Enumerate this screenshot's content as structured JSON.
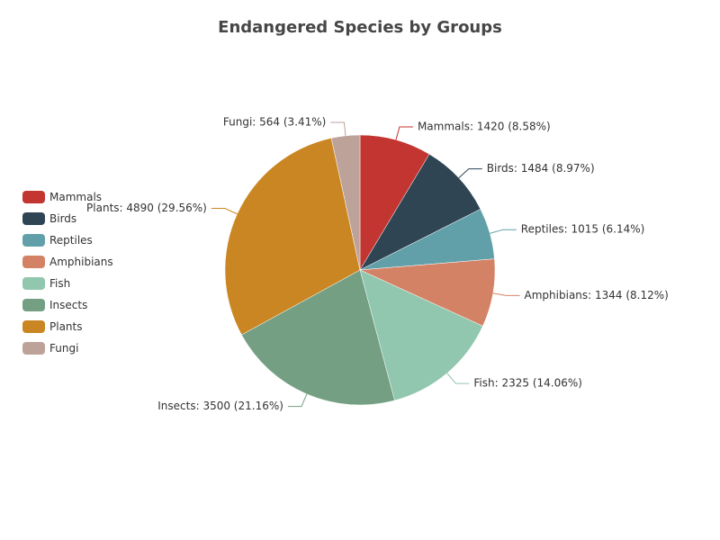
{
  "chart_data": {
    "type": "pie",
    "title": "Endangered Species by Groups",
    "legend_position": "left",
    "slices": [
      {
        "name": "Mammals",
        "value": 1420,
        "percent": "8.58%",
        "color": "#c23531",
        "label": "Mammals: 1420 (8.58%)"
      },
      {
        "name": "Birds",
        "value": 1484,
        "percent": "8.97%",
        "color": "#2f4554",
        "label": "Birds: 1484 (8.97%)"
      },
      {
        "name": "Reptiles",
        "value": 1015,
        "percent": "6.14%",
        "color": "#61a0a8",
        "label": "Reptiles: 1015 (6.14%)"
      },
      {
        "name": "Amphibians",
        "value": 1344,
        "percent": "8.12%",
        "color": "#d48265",
        "label": "Amphibians: 1344 (8.12%)"
      },
      {
        "name": "Fish",
        "value": 2325,
        "percent": "14.06%",
        "color": "#91c7ae",
        "label": "Fish: 2325 (14.06%)"
      },
      {
        "name": "Insects",
        "value": 3500,
        "percent": "21.16%",
        "color": "#749f83",
        "label": "Insects: 3500 (21.16%)"
      },
      {
        "name": "Plants",
        "value": 4890,
        "percent": "29.56%",
        "color": "#ca8622",
        "label": "Plants: 4890 (29.56%)"
      },
      {
        "name": "Fungi",
        "value": 564,
        "percent": "3.41%",
        "color": "#bda29a",
        "label": "Fungi: 564 (3.41%)"
      }
    ]
  }
}
